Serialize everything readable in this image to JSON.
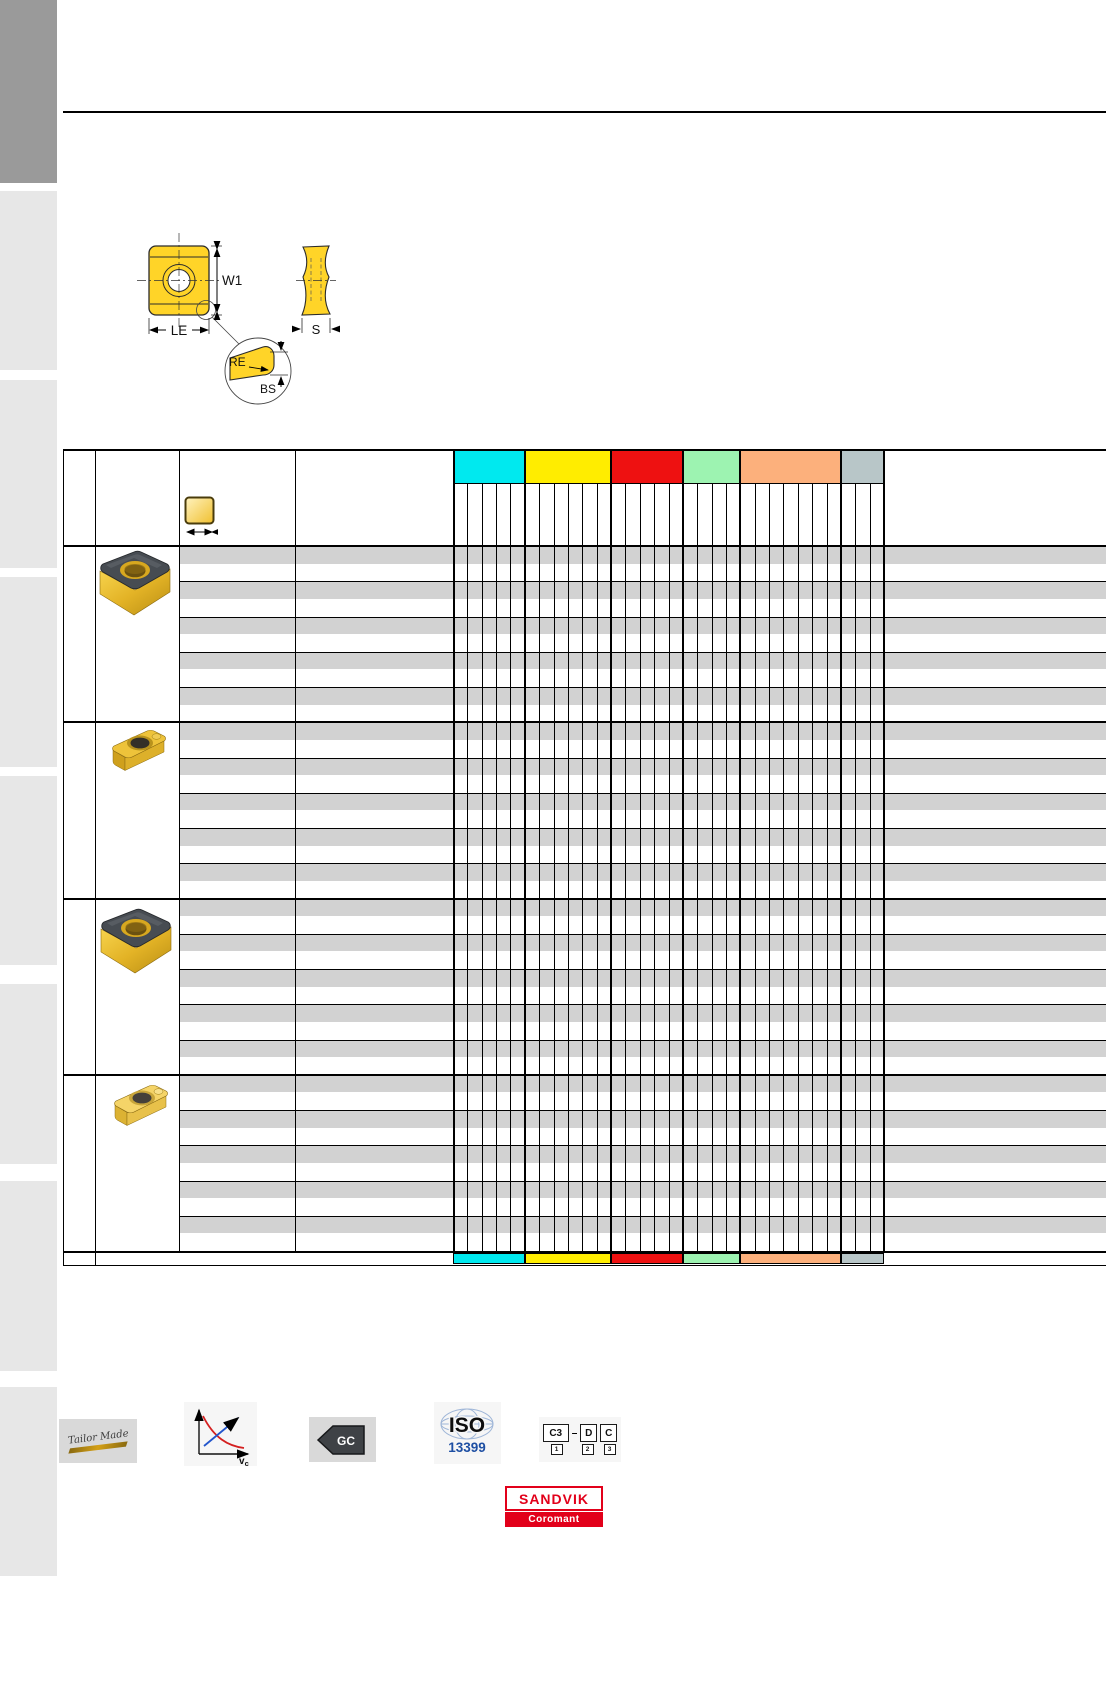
{
  "drawing": {
    "labels": {
      "w1": "W1",
      "le": "LE",
      "re": "RE",
      "bs": "BS",
      "s": "S"
    }
  },
  "table": {
    "row_stripe_color": "#d2d2d2",
    "header_groups": [
      {
        "name": "group-cyan",
        "color": "#00e9ef",
        "cells": 5
      },
      {
        "name": "group-yellow",
        "color": "#ffed00",
        "cells": 6
      },
      {
        "name": "group-red",
        "color": "#ee1111",
        "cells": 5
      },
      {
        "name": "group-green",
        "color": "#9df3b1",
        "cells": 4
      },
      {
        "name": "group-peach",
        "color": "#fcb07c",
        "cells": 7
      },
      {
        "name": "group-grayblue",
        "color": "#b8c6c8",
        "cells": 3
      }
    ],
    "product_blocks": [
      {
        "insert": "square-insert-dark-top",
        "rows": 10
      },
      {
        "insert": "rect-insert-gold",
        "rows": 10
      },
      {
        "insert": "square-insert-dark-top",
        "rows": 10
      },
      {
        "insert": "rect-insert-gold-light",
        "rows": 10
      }
    ]
  },
  "footer_icons": {
    "tailor_made": {
      "label": "Tailor Made"
    },
    "cutting_data": {
      "axis_label_v": "v",
      "axis_label_sub": "c"
    },
    "gc": {
      "label": "GC"
    },
    "iso": {
      "line1": "ISO",
      "line2": "13399"
    },
    "code": {
      "box1": "C3",
      "dash": "–",
      "box2": "D",
      "box3": "C",
      "sub1": "1",
      "sub2": "2",
      "sub3": "3"
    }
  },
  "logo": {
    "brand": "SANDVIK",
    "sub": "Coromant",
    "color": "#e2001a"
  }
}
